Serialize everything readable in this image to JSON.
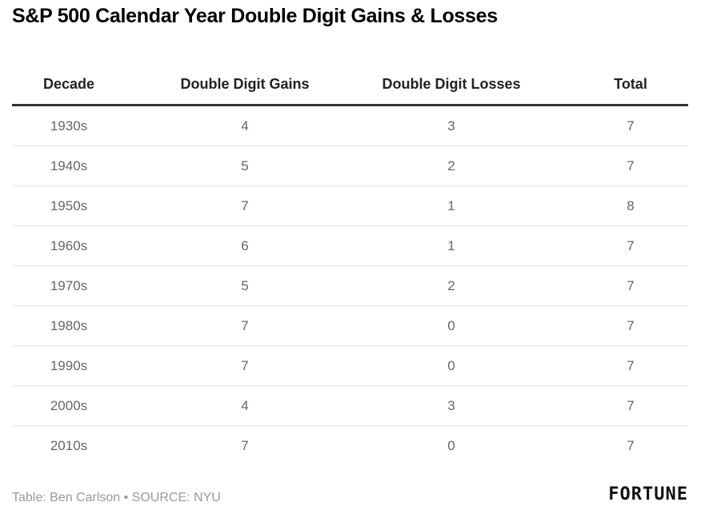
{
  "title": "S&P 500 Calendar Year Double Digit Gains & Losses",
  "chart_data": {
    "type": "table",
    "title": "S&P 500 Calendar Year Double Digit Gains & Losses",
    "columns": [
      "Decade",
      "Double Digit Gains",
      "Double Digit Losses",
      "Total"
    ],
    "rows": [
      [
        "1930s",
        "4",
        "3",
        "7"
      ],
      [
        "1940s",
        "5",
        "2",
        "7"
      ],
      [
        "1950s",
        "7",
        "1",
        "8"
      ],
      [
        "1960s",
        "6",
        "1",
        "7"
      ],
      [
        "1970s",
        "5",
        "2",
        "7"
      ],
      [
        "1980s",
        "7",
        "0",
        "7"
      ],
      [
        "1990s",
        "7",
        "0",
        "7"
      ],
      [
        "2000s",
        "4",
        "3",
        "7"
      ],
      [
        "2010s",
        "7",
        "0",
        "7"
      ]
    ]
  },
  "footer": {
    "credit": "Table: Ben Carlson • SOURCE: NYU",
    "logo": "FORTUNE"
  },
  "colors": {
    "header_text": "#222222",
    "cell_text": "#666666",
    "header_rule": "#333333",
    "row_rule": "#e6e6e6",
    "footer_text": "#999999"
  }
}
